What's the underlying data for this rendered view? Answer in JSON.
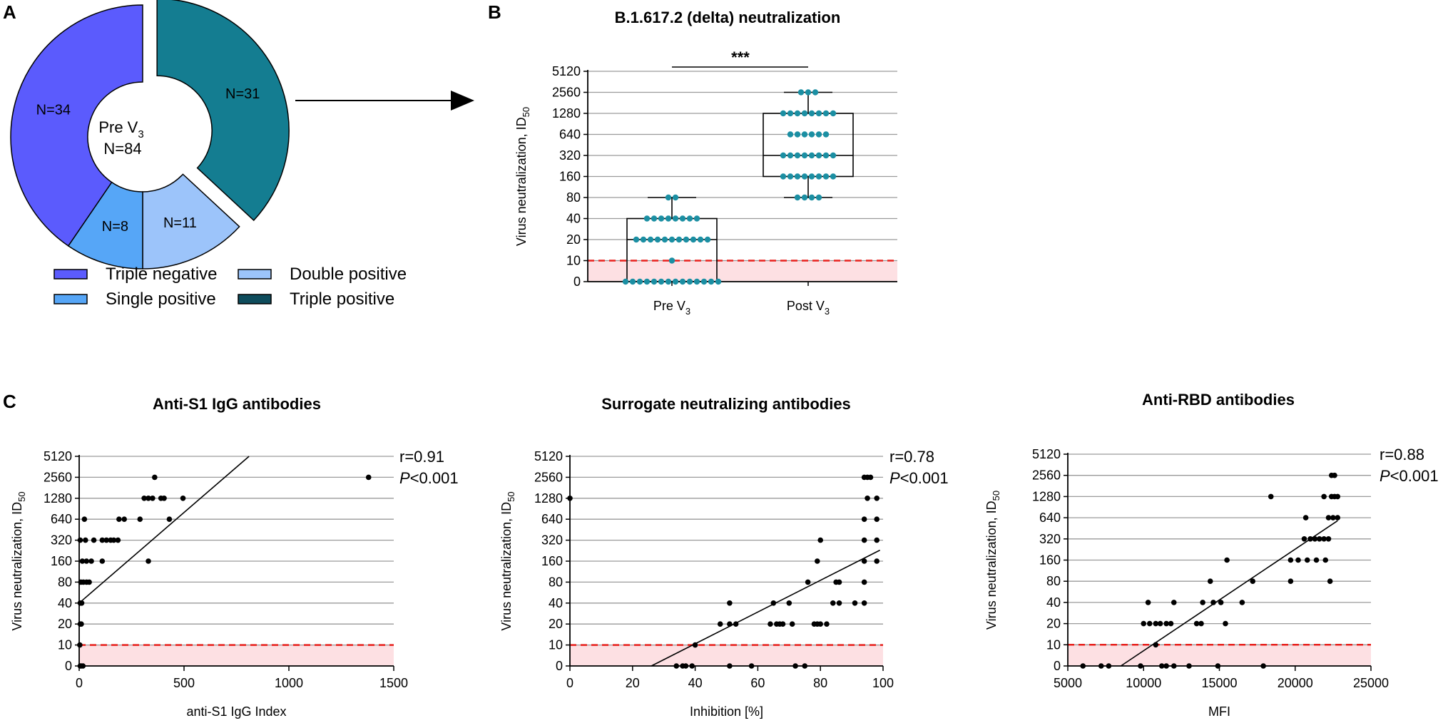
{
  "colors": {
    "triple_negative": "#5b5bfd",
    "single_positive": "#56a6f7",
    "double_positive": "#9cc4fa",
    "triple_positive": "#147d91",
    "legend_triple_positive": "#0e4c5c",
    "dot_teal": "#1b8fa3",
    "threshold_red": "#e8201c",
    "threshold_fill": "#fde0e3",
    "grid": "#9a9a9a"
  },
  "panelA": {
    "letter": "A",
    "center_label_line1": "Pre V",
    "center_label_sub": "3",
    "center_label_line2": "N=84",
    "segments": [
      {
        "key": "triple_negative",
        "label": "N=34",
        "value": 34
      },
      {
        "key": "single_positive",
        "label": "N=8",
        "value": 8
      },
      {
        "key": "double_positive",
        "label": "N=11",
        "value": 11
      },
      {
        "key": "triple_positive",
        "label": "N=31",
        "value": 31
      }
    ],
    "legend": [
      {
        "key": "triple_negative",
        "label": "Triple negative"
      },
      {
        "key": "double_positive",
        "label": "Double positive"
      },
      {
        "key": "single_positive",
        "label": "Single positive"
      },
      {
        "key": "legend_triple_positive",
        "label": "Triple positive"
      }
    ]
  },
  "panelB": {
    "letter": "B",
    "title": "B.1.617.2 (delta) neutralization",
    "ylabel": "Virus neutralization, ID",
    "ylabel_sub": "50",
    "significance": "***",
    "y_ticks": [
      "5120",
      "2560",
      "1280",
      "640",
      "320",
      "160",
      "80",
      "40",
      "20",
      "10",
      "0"
    ],
    "groups": [
      {
        "label": "Pre V",
        "sub": "3",
        "box": {
          "min": "0",
          "q1": "0",
          "median": "20",
          "q3": "40",
          "max": "80"
        },
        "points": {
          "0": 14,
          "10": 1,
          "20": 11,
          "40": 8,
          "80": 2
        }
      },
      {
        "label": "Post V",
        "sub": "3",
        "box": {
          "min": "80",
          "q1": "160",
          "median": "320",
          "q3": "1280",
          "max": "2560"
        },
        "points": {
          "80": 4,
          "160": 8,
          "320": 8,
          "640": 6,
          "1280": 8,
          "2560": 3
        }
      }
    ]
  },
  "panelC": {
    "letter": "C",
    "charts": [
      {
        "title": "Anti-S1 IgG antibodies",
        "xlabel": "anti-S1 IgG Index",
        "ylabel": "Virus neutralization, ID",
        "ylabel_sub": "50",
        "x_ticks": [
          0,
          500,
          1000,
          1500
        ],
        "xlim": [
          0,
          1500
        ],
        "r": "r=0.91",
        "p_letter": "P",
        "p_rest": "<0.001",
        "fit": [
          [
            0,
            40
          ],
          [
            810,
            5120
          ]
        ],
        "points": [
          [
            5,
            0
          ],
          [
            10,
            0
          ],
          [
            18,
            0
          ],
          [
            3,
            10
          ],
          [
            5,
            20
          ],
          [
            10,
            20
          ],
          [
            5,
            40
          ],
          [
            12,
            40
          ],
          [
            8,
            80
          ],
          [
            20,
            80
          ],
          [
            35,
            80
          ],
          [
            48,
            80
          ],
          [
            15,
            160
          ],
          [
            35,
            160
          ],
          [
            58,
            160
          ],
          [
            110,
            160
          ],
          [
            330,
            160
          ],
          [
            5,
            320
          ],
          [
            30,
            320
          ],
          [
            70,
            320
          ],
          [
            110,
            320
          ],
          [
            130,
            320
          ],
          [
            150,
            320
          ],
          [
            165,
            320
          ],
          [
            185,
            320
          ],
          [
            25,
            640
          ],
          [
            190,
            640
          ],
          [
            215,
            640
          ],
          [
            290,
            640
          ],
          [
            430,
            640
          ],
          [
            310,
            1280
          ],
          [
            330,
            1280
          ],
          [
            350,
            1280
          ],
          [
            390,
            1280
          ],
          [
            405,
            1280
          ],
          [
            495,
            1280
          ],
          [
            360,
            2560
          ],
          [
            1380,
            2560
          ]
        ]
      },
      {
        "title": "Surrogate neutralizing antibodies",
        "xlabel": "Inhibition [%]",
        "ylabel": "Virus neutralization, ID",
        "ylabel_sub": "50",
        "x_ticks": [
          0,
          20,
          40,
          60,
          80,
          100
        ],
        "xlim": [
          0,
          100
        ],
        "r": "r=0.78",
        "p_letter": "P",
        "p_rest": "<0.001",
        "fit": [
          [
            26,
            0
          ],
          [
            99,
            230
          ]
        ],
        "points": [
          [
            34,
            0
          ],
          [
            36,
            0
          ],
          [
            37,
            0
          ],
          [
            39,
            0
          ],
          [
            51,
            0
          ],
          [
            58,
            0
          ],
          [
            72,
            0
          ],
          [
            75,
            0
          ],
          [
            40,
            10
          ],
          [
            48,
            20
          ],
          [
            51,
            20
          ],
          [
            53,
            20
          ],
          [
            64,
            20
          ],
          [
            66,
            20
          ],
          [
            67,
            20
          ],
          [
            68,
            20
          ],
          [
            71,
            20
          ],
          [
            78,
            20
          ],
          [
            79,
            20
          ],
          [
            80,
            20
          ],
          [
            82,
            20
          ],
          [
            51,
            40
          ],
          [
            65,
            40
          ],
          [
            70,
            40
          ],
          [
            84,
            40
          ],
          [
            86,
            40
          ],
          [
            91,
            40
          ],
          [
            94,
            40
          ],
          [
            76,
            80
          ],
          [
            85,
            80
          ],
          [
            86,
            80
          ],
          [
            94,
            80
          ],
          [
            79,
            160
          ],
          [
            94,
            160
          ],
          [
            98,
            160
          ],
          [
            80,
            320
          ],
          [
            94,
            320
          ],
          [
            98,
            320
          ],
          [
            94,
            640
          ],
          [
            98,
            640
          ],
          [
            0,
            1280
          ],
          [
            95,
            1280
          ],
          [
            98,
            1280
          ],
          [
            94,
            2560
          ],
          [
            95,
            2560
          ],
          [
            96,
            2560
          ]
        ]
      },
      {
        "title": "Anti-RBD antibodies",
        "xlabel": "MFI",
        "ylabel": "Virus neutralization, ID",
        "ylabel_sub": "50",
        "x_ticks": [
          5000,
          10000,
          15000,
          20000,
          25000
        ],
        "xlim": [
          5000,
          25000
        ],
        "r": "r=0.88",
        "p_letter": "P",
        "p_rest": "<0.001",
        "fit": [
          [
            8500,
            0
          ],
          [
            22800,
            580
          ]
        ],
        "points": [
          [
            6000,
            0
          ],
          [
            7200,
            0
          ],
          [
            7700,
            0
          ],
          [
            9800,
            0
          ],
          [
            11200,
            0
          ],
          [
            11500,
            0
          ],
          [
            12000,
            0
          ],
          [
            13000,
            0
          ],
          [
            14900,
            0
          ],
          [
            17900,
            0
          ],
          [
            10800,
            10
          ],
          [
            10000,
            20
          ],
          [
            10400,
            20
          ],
          [
            10800,
            20
          ],
          [
            11100,
            20
          ],
          [
            11500,
            20
          ],
          [
            11800,
            20
          ],
          [
            13500,
            20
          ],
          [
            13800,
            20
          ],
          [
            15400,
            20
          ],
          [
            10300,
            40
          ],
          [
            12000,
            40
          ],
          [
            13900,
            40
          ],
          [
            14600,
            40
          ],
          [
            15100,
            40
          ],
          [
            16500,
            40
          ],
          [
            14400,
            80
          ],
          [
            17200,
            80
          ],
          [
            19700,
            80
          ],
          [
            22300,
            80
          ],
          [
            15500,
            160
          ],
          [
            19700,
            160
          ],
          [
            20200,
            160
          ],
          [
            20800,
            160
          ],
          [
            21400,
            160
          ],
          [
            22000,
            160
          ],
          [
            20600,
            320
          ],
          [
            21000,
            320
          ],
          [
            21300,
            320
          ],
          [
            21600,
            320
          ],
          [
            21900,
            320
          ],
          [
            22200,
            320
          ],
          [
            20700,
            640
          ],
          [
            22200,
            640
          ],
          [
            22500,
            640
          ],
          [
            22800,
            640
          ],
          [
            18400,
            1280
          ],
          [
            21900,
            1280
          ],
          [
            22400,
            1280
          ],
          [
            22600,
            1280
          ],
          [
            22800,
            1280
          ],
          [
            22400,
            2560
          ],
          [
            22600,
            2560
          ]
        ]
      }
    ]
  }
}
